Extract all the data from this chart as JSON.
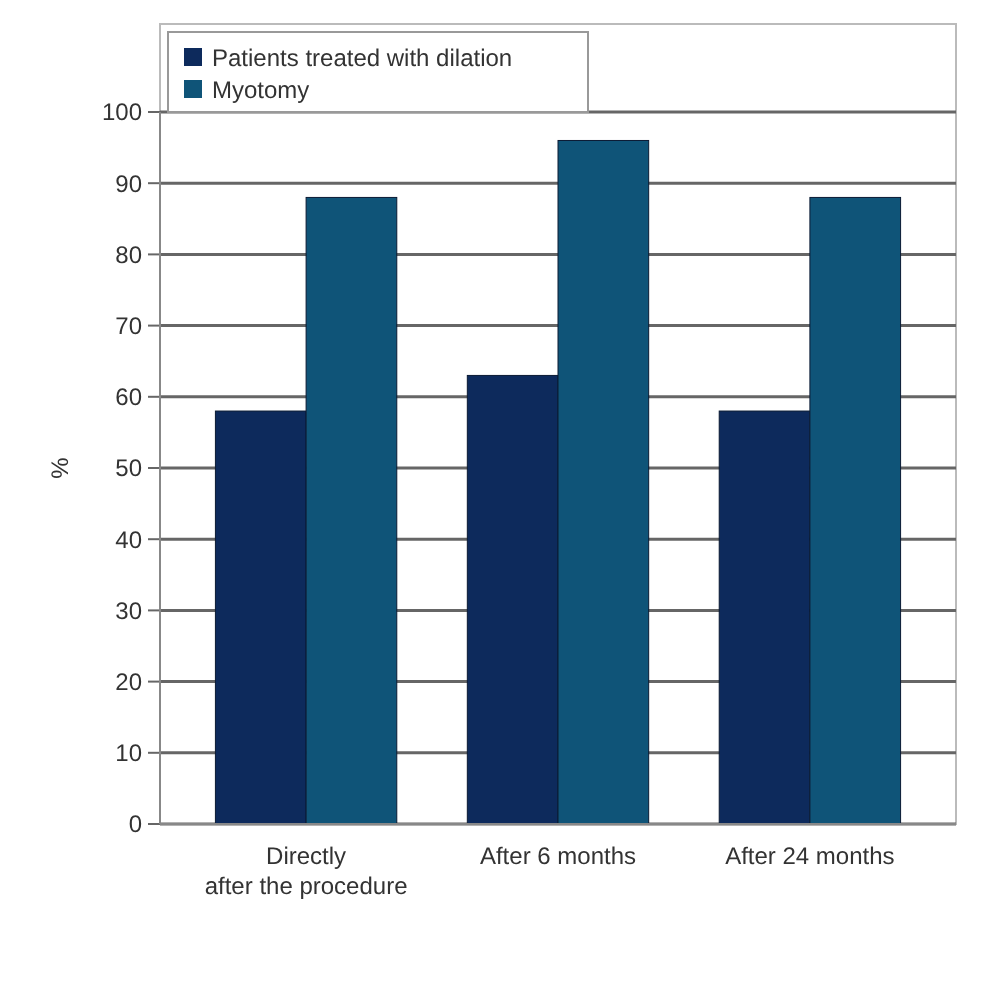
{
  "chart_data": {
    "type": "bar",
    "categories": [
      "Directly\nafter the procedure",
      "After 6 months",
      "After 24 months"
    ],
    "ylabel": "%",
    "ylim": [
      0,
      100
    ],
    "yticks": [
      0,
      10,
      20,
      30,
      40,
      50,
      60,
      70,
      80,
      90,
      100
    ],
    "grid": "y",
    "legend": "top left",
    "series": [
      {
        "name": "Patients treated with dilation",
        "color": "#0d2a5c",
        "values": [
          58,
          63,
          58
        ]
      },
      {
        "name": "Myotomy",
        "color": "#0f5478",
        "values": [
          88,
          96,
          88
        ]
      }
    ]
  }
}
